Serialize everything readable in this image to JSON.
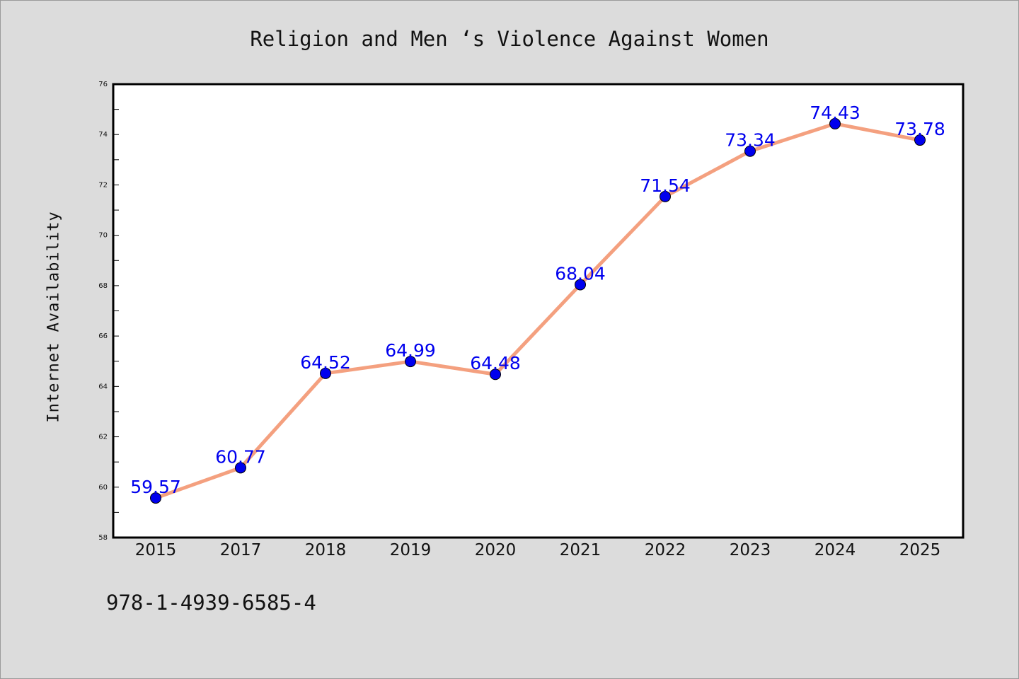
{
  "footer": {
    "isbn": "978-1-4939-6585-4"
  },
  "chart_data": {
    "type": "line",
    "title": "Religion and Men ‘s Violence Against Women",
    "xlabel": "",
    "ylabel": "Internet Availability",
    "categories": [
      "2015",
      "2017",
      "2018",
      "2019",
      "2020",
      "2021",
      "2022",
      "2023",
      "2024",
      "2025"
    ],
    "series": [
      {
        "values": [
          59.57,
          60.77,
          64.52,
          64.99,
          64.48,
          68.04,
          71.54,
          73.34,
          74.43,
          73.78
        ],
        "line_color": "#f4a07f",
        "marker_color": "#0000ee"
      }
    ],
    "data_labels": [
      "59.57",
      "60.77",
      "64.52",
      "64.99",
      "64.48",
      "68.04",
      "71.54",
      "73.34",
      "74.43",
      "73.78"
    ],
    "ylim": [
      58,
      76
    ],
    "yticks": [
      58,
      60,
      62,
      64,
      66,
      68,
      70,
      72,
      74,
      76
    ],
    "grid": false,
    "legend": "none"
  }
}
